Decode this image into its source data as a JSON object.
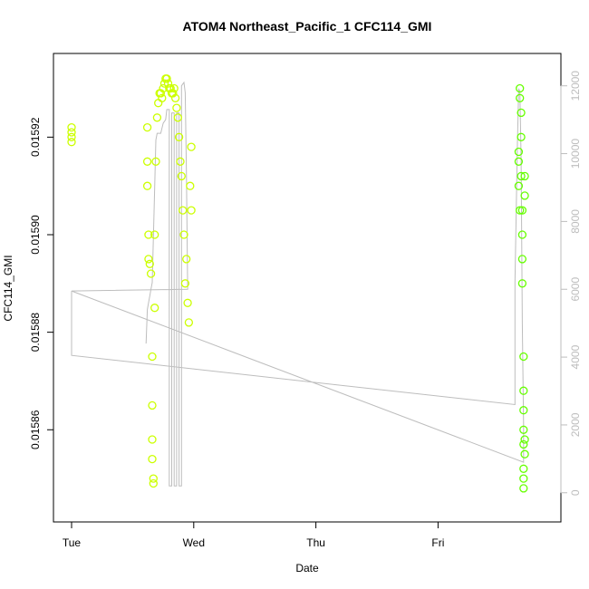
{
  "chart_data": {
    "type": "scatter",
    "title": "ATOM4 Northeast_Pacific_1 CFC114_GMI",
    "xlabel": "Date",
    "ylabel": "CFC114_GMI",
    "x_ticks": [
      "Tue",
      "Wed",
      "Thu",
      "Fri"
    ],
    "xlim_days": [
      0,
      3.85
    ],
    "ylim": [
      0.015845,
      0.015934
    ],
    "y_ticks": [
      0.01586,
      0.01588,
      0.0159,
      0.01592
    ],
    "y_tick_labels": [
      "0.01586",
      "0.01588",
      "0.01590",
      "0.01592"
    ],
    "right_axis": {
      "label": "",
      "ylim": [
        -300,
        12500
      ],
      "ticks": [
        0,
        2000,
        4000,
        6000,
        8000,
        10000,
        12000
      ],
      "tick_labels": [
        "0",
        "2000",
        "4000",
        "6000",
        "8000",
        "10000",
        "12000"
      ],
      "color": "#bdbdbd"
    },
    "grid": false,
    "colors": {
      "early": "#ccff00",
      "late": "#66ff00",
      "altitude_line": "#bdbdbd"
    },
    "series": [
      {
        "points": [
          [
            0.0,
            0.015922
          ],
          [
            0.0,
            0.015921
          ],
          [
            0.0,
            0.01592
          ],
          [
            0.0,
            0.015919
          ],
          [
            0.62,
            0.015922
          ],
          [
            0.62,
            0.015915
          ],
          [
            0.62,
            0.01591
          ],
          [
            0.63,
            0.0159
          ],
          [
            0.63,
            0.015895
          ],
          [
            0.64,
            0.015894
          ],
          [
            0.65,
            0.015892
          ],
          [
            0.66,
            0.015875
          ],
          [
            0.66,
            0.015865
          ],
          [
            0.66,
            0.015858
          ],
          [
            0.66,
            0.015854
          ],
          [
            0.67,
            0.015849
          ],
          [
            0.67,
            0.01585
          ],
          [
            0.68,
            0.015885
          ],
          [
            0.68,
            0.0159
          ],
          [
            0.69,
            0.015915
          ],
          [
            0.7,
            0.015924
          ],
          [
            0.71,
            0.015927
          ],
          [
            0.72,
            0.015929
          ],
          [
            0.73,
            0.015929
          ],
          [
            0.74,
            0.015928
          ],
          [
            0.75,
            0.01593
          ],
          [
            0.76,
            0.015931
          ],
          [
            0.77,
            0.015932
          ],
          [
            0.78,
            0.015932
          ],
          [
            0.79,
            0.015931
          ],
          [
            0.8,
            0.01593
          ],
          [
            0.81,
            0.01593
          ],
          [
            0.82,
            0.015929
          ],
          [
            0.83,
            0.015929
          ],
          [
            0.84,
            0.01593
          ],
          [
            0.85,
            0.015928
          ],
          [
            0.86,
            0.015926
          ],
          [
            0.87,
            0.015924
          ],
          [
            0.88,
            0.01592
          ],
          [
            0.89,
            0.015915
          ],
          [
            0.9,
            0.015912
          ],
          [
            0.91,
            0.015905
          ],
          [
            0.92,
            0.0159
          ],
          [
            0.93,
            0.01589
          ],
          [
            0.94,
            0.015895
          ],
          [
            0.95,
            0.015886
          ],
          [
            0.96,
            0.015882
          ],
          [
            0.97,
            0.01591
          ],
          [
            0.98,
            0.015918
          ],
          [
            0.98,
            0.015905
          ]
        ]
      },
      {
        "points": [
          [
            3.66,
            0.015917
          ],
          [
            3.66,
            0.015915
          ],
          [
            3.66,
            0.01591
          ],
          [
            3.67,
            0.015905
          ],
          [
            3.67,
            0.01593
          ],
          [
            3.67,
            0.015928
          ],
          [
            3.68,
            0.015925
          ],
          [
            3.68,
            0.01592
          ],
          [
            3.68,
            0.015912
          ],
          [
            3.69,
            0.015905
          ],
          [
            3.69,
            0.0159
          ],
          [
            3.69,
            0.015895
          ],
          [
            3.69,
            0.01589
          ],
          [
            3.7,
            0.015875
          ],
          [
            3.7,
            0.015868
          ],
          [
            3.7,
            0.015864
          ],
          [
            3.7,
            0.01586
          ],
          [
            3.7,
            0.015857
          ],
          [
            3.7,
            0.015852
          ],
          [
            3.7,
            0.01585
          ],
          [
            3.7,
            0.015848
          ],
          [
            3.71,
            0.015912
          ],
          [
            3.71,
            0.015908
          ],
          [
            3.71,
            0.015858
          ],
          [
            3.71,
            0.015855
          ]
        ]
      }
    ],
    "altitude_line": [
      [
        0.0,
        5950
      ],
      [
        0.0,
        4050
      ],
      [
        3.63,
        2600
      ],
      [
        3.63,
        6200
      ],
      [
        3.65,
        10300
      ],
      [
        3.66,
        11900
      ],
      [
        3.67,
        11850
      ],
      [
        3.68,
        9800
      ],
      [
        3.69,
        5000
      ],
      [
        3.7,
        2000
      ],
      [
        3.7,
        900
      ],
      [
        0.0,
        5950
      ],
      [
        0.95,
        6000
      ],
      [
        0.94,
        9500
      ],
      [
        0.93,
        11800
      ],
      [
        0.92,
        12100
      ],
      [
        0.9,
        12000
      ],
      [
        0.9,
        200
      ],
      [
        0.88,
        200
      ],
      [
        0.88,
        11200
      ],
      [
        0.86,
        11200
      ],
      [
        0.86,
        200
      ],
      [
        0.84,
        200
      ],
      [
        0.84,
        11200
      ],
      [
        0.82,
        11200
      ],
      [
        0.82,
        200
      ],
      [
        0.8,
        200
      ],
      [
        0.8,
        11300
      ],
      [
        0.78,
        11300
      ],
      [
        0.77,
        11000
      ],
      [
        0.75,
        10900
      ],
      [
        0.73,
        10600
      ],
      [
        0.7,
        10600
      ],
      [
        0.69,
        10400
      ],
      [
        0.68,
        9000
      ],
      [
        0.66,
        6200
      ],
      [
        0.65,
        6000
      ],
      [
        0.64,
        5800
      ],
      [
        0.63,
        5600
      ],
      [
        0.62,
        5400
      ],
      [
        0.61,
        4400
      ]
    ]
  }
}
